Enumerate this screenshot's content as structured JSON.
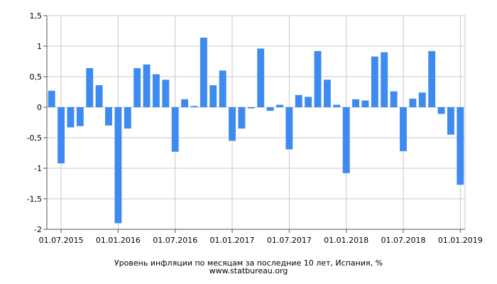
{
  "chart_data": {
    "type": "bar",
    "title": "Уровень инфляции по месяцам за последние 10 лет, Испания, %",
    "source": "www.statbureau.org",
    "xlabel": "",
    "ylabel": "",
    "ylim": [
      -2,
      1.5
    ],
    "grid": true,
    "legend": "none",
    "bar_color": "#3e8bf0",
    "y_ticks": [
      "1,5",
      "1",
      "0,5",
      "0",
      "-0,5",
      "-1",
      "-1,5",
      "-2"
    ],
    "y_tick_values": [
      1.5,
      1,
      0.5,
      0,
      -0.5,
      -1,
      -1.5,
      -2
    ],
    "x_tick_labels": [
      "01.07.2015",
      "01.01.2016",
      "01.07.2016",
      "01.01.2017",
      "01.07.2017",
      "01.01.2018",
      "01.07.2018",
      "01.01.2019"
    ],
    "x_tick_month_index": [
      1,
      7,
      13,
      19,
      25,
      31,
      37,
      43
    ],
    "categories": [
      "2015-06",
      "2015-07",
      "2015-08",
      "2015-09",
      "2015-10",
      "2015-11",
      "2015-12",
      "2016-01",
      "2016-02",
      "2016-03",
      "2016-04",
      "2016-05",
      "2016-06",
      "2016-07",
      "2016-08",
      "2016-09",
      "2016-10",
      "2016-11",
      "2016-12",
      "2017-01",
      "2017-02",
      "2017-03",
      "2017-04",
      "2017-05",
      "2017-06",
      "2017-07",
      "2017-08",
      "2017-09",
      "2017-10",
      "2017-11",
      "2017-12",
      "2018-01",
      "2018-02",
      "2018-03",
      "2018-04",
      "2018-05",
      "2018-06",
      "2018-07",
      "2018-08",
      "2018-09",
      "2018-10",
      "2018-11",
      "2018-12",
      "2019-01"
    ],
    "values": [
      0.27,
      -0.92,
      -0.33,
      -0.31,
      0.64,
      0.36,
      -0.3,
      -1.9,
      -0.35,
      0.64,
      0.7,
      0.54,
      0.45,
      -0.73,
      0.13,
      0.02,
      1.14,
      0.36,
      0.6,
      -0.55,
      -0.35,
      -0.02,
      0.96,
      -0.06,
      0.04,
      -0.69,
      0.2,
      0.17,
      0.92,
      0.45,
      0.04,
      -1.08,
      0.13,
      0.11,
      0.83,
      0.9,
      0.26,
      -0.72,
      0.14,
      0.24,
      0.92,
      -0.11,
      -0.45,
      -1.27
    ]
  }
}
